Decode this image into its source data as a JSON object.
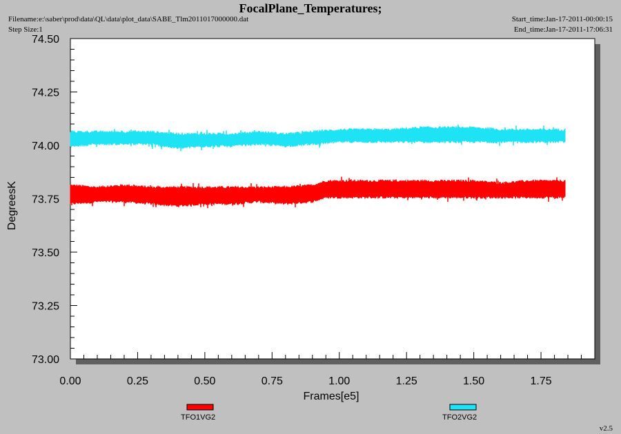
{
  "header": {
    "title": "FocalPlane_Temperatures;",
    "filename": "Filename:e:\\saber\\prod\\data\\QL\\data\\plot_data\\SABE_Tlm2011017000000.dat",
    "step_size": "Step Size:1",
    "start_time": "Start_time:Jan-17-2011-00:00:15",
    "end_time": "End_time:Jan-17-2011-17:06:31"
  },
  "footer": {
    "version": "v2.5"
  },
  "colors": {
    "series1": "#ff0000",
    "series2": "#1ee3f5",
    "plot_bg": "#ffffff",
    "page_bg": "#c0c0c0"
  },
  "chart_data": {
    "type": "line",
    "title": "FocalPlane_Temperatures;",
    "xlabel": "Frames[e5]",
    "ylabel": "DegreesK",
    "xlim": [
      0,
      1.95
    ],
    "ylim": [
      73.0,
      74.5
    ],
    "x_ticks": [
      "0.00",
      "0.25",
      "0.50",
      "0.75",
      "1.00",
      "1.25",
      "1.50",
      "1.75"
    ],
    "y_ticks": [
      "73.00",
      "73.25",
      "73.50",
      "73.75",
      "74.00",
      "74.25",
      "74.50"
    ],
    "grid": false,
    "legend_position": "bottom",
    "series": [
      {
        "name": "TFO1VG2",
        "color": "#ff0000",
        "x": [
          0.0,
          0.1,
          0.2,
          0.3,
          0.4,
          0.5,
          0.6,
          0.7,
          0.8,
          0.9,
          0.95,
          1.0,
          1.1,
          1.2,
          1.3,
          1.4,
          1.5,
          1.6,
          1.7,
          1.84
        ],
        "y_min": [
          73.73,
          73.74,
          73.74,
          73.73,
          73.72,
          73.73,
          73.73,
          73.74,
          73.73,
          73.74,
          73.76,
          73.76,
          73.76,
          73.76,
          73.76,
          73.76,
          73.76,
          73.76,
          73.76,
          73.76
        ],
        "y_max": [
          73.81,
          73.8,
          73.81,
          73.8,
          73.8,
          73.8,
          73.8,
          73.8,
          73.8,
          73.81,
          73.83,
          73.83,
          73.83,
          73.83,
          73.83,
          73.83,
          73.83,
          73.82,
          73.83,
          73.83
        ]
      },
      {
        "name": "TFO2VG2",
        "color": "#1ee3f5",
        "x": [
          0.0,
          0.1,
          0.2,
          0.3,
          0.4,
          0.5,
          0.6,
          0.7,
          0.8,
          0.9,
          1.0,
          1.1,
          1.2,
          1.3,
          1.4,
          1.5,
          1.6,
          1.7,
          1.84
        ],
        "y_min": [
          74.0,
          74.01,
          74.01,
          74.01,
          73.99,
          74.0,
          74.0,
          74.01,
          74.0,
          74.01,
          74.02,
          74.02,
          74.02,
          74.02,
          74.02,
          74.02,
          74.02,
          74.02,
          74.02
        ],
        "y_max": [
          74.06,
          74.06,
          74.06,
          74.06,
          74.05,
          74.05,
          74.05,
          74.06,
          74.05,
          74.06,
          74.07,
          74.07,
          74.07,
          74.08,
          74.08,
          74.08,
          74.07,
          74.07,
          74.07
        ]
      }
    ]
  }
}
